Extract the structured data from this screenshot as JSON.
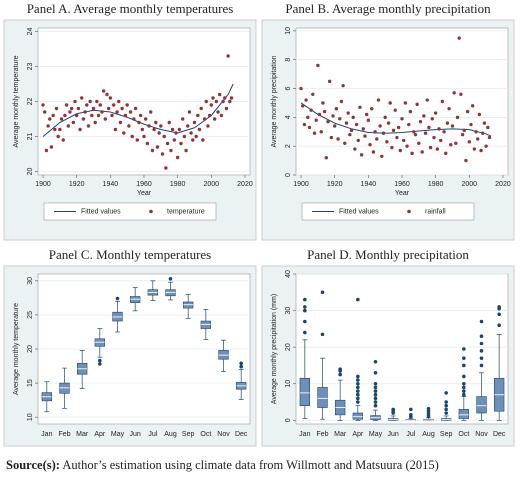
{
  "chart_data": [
    {
      "type": "scatter",
      "title": "Panel A. Average monthly temperatures",
      "xlabel": "Year",
      "ylabel": "Average monthly temperature",
      "xlim": [
        1897,
        2023
      ],
      "xticks": [
        1900,
        1920,
        1940,
        1960,
        1980,
        2000,
        2020
      ],
      "ylim": [
        19.9,
        24.1
      ],
      "yticks": [
        20,
        21,
        22,
        23,
        24
      ],
      "series": [
        {
          "name": "Fitted values",
          "kind": "line",
          "color": "#1a476f",
          "x": [
            1900,
            1910,
            1920,
            1930,
            1940,
            1950,
            1960,
            1970,
            1980,
            1990,
            2000,
            2010,
            2013
          ],
          "values": [
            21.0,
            21.4,
            21.65,
            21.75,
            21.7,
            21.55,
            21.35,
            21.2,
            21.1,
            21.25,
            21.6,
            22.2,
            22.5
          ]
        },
        {
          "name": "temperature",
          "kind": "point",
          "color": "#90353b",
          "x": [
            1900,
            1901,
            1902,
            1903,
            1904,
            1905,
            1906,
            1907,
            1908,
            1909,
            1910,
            1911,
            1912,
            1913,
            1914,
            1915,
            1916,
            1917,
            1918,
            1919,
            1920,
            1921,
            1922,
            1923,
            1924,
            1925,
            1926,
            1927,
            1928,
            1929,
            1930,
            1931,
            1932,
            1933,
            1934,
            1935,
            1936,
            1937,
            1938,
            1939,
            1940,
            1941,
            1942,
            1943,
            1944,
            1945,
            1946,
            1947,
            1948,
            1949,
            1950,
            1951,
            1952,
            1953,
            1954,
            1955,
            1956,
            1957,
            1958,
            1959,
            1960,
            1961,
            1962,
            1963,
            1964,
            1965,
            1966,
            1967,
            1968,
            1969,
            1970,
            1971,
            1972,
            1973,
            1974,
            1975,
            1976,
            1977,
            1978,
            1979,
            1980,
            1981,
            1982,
            1983,
            1984,
            1985,
            1986,
            1987,
            1988,
            1989,
            1990,
            1991,
            1992,
            1993,
            1994,
            1995,
            1996,
            1997,
            1998,
            1999,
            2000,
            2001,
            2002,
            2003,
            2004,
            2005,
            2006,
            2007,
            2008,
            2009,
            2010,
            2011,
            2012
          ],
          "values": [
            21.9,
            21.7,
            20.6,
            21.3,
            21.5,
            20.7,
            21.6,
            21.2,
            21.8,
            21.0,
            21.2,
            21.5,
            20.9,
            21.6,
            21.9,
            21.3,
            21.7,
            21.8,
            21.4,
            22.0,
            21.6,
            21.8,
            21.2,
            22.1,
            21.5,
            21.7,
            21.9,
            21.3,
            22.0,
            21.6,
            21.8,
            21.4,
            22.0,
            21.6,
            21.9,
            21.7,
            22.3,
            21.5,
            22.2,
            21.8,
            22.1,
            21.6,
            21.9,
            21.2,
            21.7,
            22.0,
            21.4,
            21.8,
            21.1,
            21.6,
            21.9,
            21.3,
            21.7,
            21.0,
            21.5,
            21.8,
            20.9,
            21.4,
            21.6,
            21.2,
            21.0,
            21.5,
            20.8,
            21.3,
            21.7,
            20.6,
            21.2,
            21.4,
            20.7,
            21.1,
            21.3,
            20.5,
            21.0,
            20.1,
            20.8,
            21.4,
            20.6,
            21.2,
            20.9,
            21.1,
            20.4,
            21.2,
            20.8,
            21.5,
            21.0,
            20.6,
            21.3,
            21.7,
            21.1,
            20.9,
            21.4,
            21.0,
            21.6,
            21.2,
            21.8,
            20.9,
            21.5,
            22.0,
            21.3,
            21.6,
            21.9,
            22.1,
            21.5,
            22.0,
            21.7,
            22.2,
            21.6,
            22.0,
            22.1,
            21.8,
            23.3,
            22.0,
            22.1
          ]
        }
      ]
    },
    {
      "type": "scatter",
      "title": "Panel B. Average monthly precipitation",
      "xlabel": "Year",
      "ylabel": "Average monthly precipitation",
      "xlim": [
        1897,
        2023
      ],
      "xticks": [
        1900,
        1920,
        1940,
        1960,
        1980,
        2000,
        2020
      ],
      "ylim": [
        0,
        10.2
      ],
      "yticks": [
        0,
        2,
        4,
        6,
        8,
        10
      ],
      "series": [
        {
          "name": "Fitted values",
          "kind": "line",
          "color": "#1a476f",
          "x": [
            1900,
            1910,
            1920,
            1930,
            1940,
            1950,
            1960,
            1970,
            1980,
            1990,
            2000,
            2010,
            2013
          ],
          "values": [
            5.0,
            4.2,
            3.6,
            3.2,
            2.95,
            2.9,
            2.95,
            3.05,
            3.15,
            3.2,
            3.15,
            2.85,
            2.7
          ]
        },
        {
          "name": "rainfall",
          "kind": "point",
          "color": "#90353b",
          "x": [
            1900,
            1901,
            1902,
            1903,
            1904,
            1905,
            1906,
            1907,
            1908,
            1909,
            1910,
            1911,
            1912,
            1913,
            1914,
            1915,
            1916,
            1917,
            1918,
            1919,
            1920,
            1921,
            1922,
            1923,
            1924,
            1925,
            1926,
            1927,
            1928,
            1929,
            1930,
            1931,
            1932,
            1933,
            1934,
            1935,
            1936,
            1937,
            1938,
            1939,
            1940,
            1941,
            1942,
            1943,
            1944,
            1945,
            1946,
            1947,
            1948,
            1949,
            1950,
            1951,
            1952,
            1953,
            1954,
            1955,
            1956,
            1957,
            1958,
            1959,
            1960,
            1961,
            1962,
            1963,
            1964,
            1965,
            1966,
            1967,
            1968,
            1969,
            1970,
            1971,
            1972,
            1973,
            1974,
            1975,
            1976,
            1977,
            1978,
            1979,
            1980,
            1981,
            1982,
            1983,
            1984,
            1985,
            1986,
            1987,
            1988,
            1989,
            1990,
            1991,
            1992,
            1993,
            1994,
            1995,
            1996,
            1997,
            1998,
            1999,
            2000,
            2001,
            2002,
            2003,
            2004,
            2005,
            2006,
            2007,
            2008,
            2009,
            2010,
            2011,
            2012
          ],
          "values": [
            6.0,
            4.8,
            3.5,
            5.2,
            4.0,
            3.3,
            4.5,
            5.6,
            2.9,
            3.8,
            7.6,
            4.2,
            3.0,
            5.0,
            4.4,
            1.2,
            3.7,
            6.5,
            2.6,
            4.1,
            3.4,
            4.6,
            2.5,
            3.9,
            5.1,
            6.2,
            2.2,
            3.6,
            4.3,
            2.8,
            3.1,
            4.0,
            1.8,
            3.5,
            2.4,
            4.7,
            1.4,
            3.2,
            2.7,
            4.2,
            3.8,
            2.1,
            4.6,
            1.6,
            3.0,
            2.5,
            5.2,
            3.4,
            1.3,
            2.9,
            4.0,
            2.3,
            3.6,
            5.0,
            1.9,
            3.1,
            4.5,
            2.6,
            3.3,
            1.7,
            3.9,
            2.4,
            5.0,
            2.0,
            3.5,
            4.4,
            1.5,
            3.0,
            2.8,
            4.9,
            2.2,
            3.7,
            1.6,
            4.1,
            2.9,
            5.2,
            3.3,
            1.9,
            3.9,
            2.6,
            4.3,
            1.8,
            3.2,
            2.4,
            5.1,
            3.0,
            1.5,
            3.6,
            4.6,
            2.1,
            3.4,
            5.7,
            2.2,
            4.0,
            9.5,
            5.6,
            2.8,
            3.1,
            1.0,
            4.4,
            2.3,
            3.5,
            4.8,
            1.8,
            3.0,
            2.5,
            4.2,
            1.7,
            2.9,
            3.6,
            2.0,
            3.3,
            2.6
          ]
        }
      ]
    },
    {
      "type": "box",
      "title": "Panel C. Monthly temperatures",
      "ylabel": "Average monthly temperature",
      "color": "#6e8fb8",
      "outlier_color": "#1a476f",
      "ylim": [
        9,
        31
      ],
      "yticks": [
        10,
        15,
        20,
        25,
        30
      ],
      "categories": [
        "Jan",
        "Feb",
        "Mar",
        "Apr",
        "May",
        "Jun",
        "Jul",
        "Aug",
        "Sep",
        "Oct",
        "Nov",
        "Dec"
      ],
      "boxes": [
        {
          "low": 10.8,
          "q1": 12.4,
          "median": 13.0,
          "q3": 13.6,
          "high": 15.2,
          "outliers": []
        },
        {
          "low": 11.3,
          "q1": 13.5,
          "median": 14.3,
          "q3": 15.0,
          "high": 17.2,
          "outliers": []
        },
        {
          "low": 14.2,
          "q1": 16.3,
          "median": 17.1,
          "q3": 17.9,
          "high": 19.8,
          "outliers": []
        },
        {
          "low": 18.8,
          "q1": 20.4,
          "median": 21.0,
          "q3": 21.5,
          "high": 23.0,
          "outliers": [
            18.3,
            17.8
          ]
        },
        {
          "low": 22.5,
          "q1": 24.1,
          "median": 24.7,
          "q3": 25.4,
          "high": 27.0,
          "outliers": [
            27.4
          ]
        },
        {
          "low": 25.6,
          "q1": 26.8,
          "median": 27.3,
          "q3": 27.7,
          "high": 29.0,
          "outliers": []
        },
        {
          "low": 27.1,
          "q1": 27.9,
          "median": 28.3,
          "q3": 28.7,
          "high": 30.0,
          "outliers": []
        },
        {
          "low": 27.2,
          "q1": 27.8,
          "median": 28.3,
          "q3": 28.7,
          "high": 29.8,
          "outliers": [
            30.3
          ]
        },
        {
          "low": 24.5,
          "q1": 26.0,
          "median": 26.5,
          "q3": 26.9,
          "high": 28.0,
          "outliers": []
        },
        {
          "low": 21.4,
          "q1": 23.0,
          "median": 23.6,
          "q3": 24.1,
          "high": 25.8,
          "outliers": []
        },
        {
          "low": 16.7,
          "q1": 18.5,
          "median": 19.1,
          "q3": 19.8,
          "high": 21.3,
          "outliers": []
        },
        {
          "low": 12.6,
          "q1": 14.1,
          "median": 14.6,
          "q3": 15.1,
          "high": 17.0,
          "outliers": [
            17.4,
            17.9
          ]
        }
      ]
    },
    {
      "type": "box",
      "title": "Panel D. Monthly precipitation",
      "ylabel": "Average monthly precipitation (mm)",
      "color": "#6e8fb8",
      "outlier_color": "#1a476f",
      "ylim": [
        -1,
        40
      ],
      "yticks": [
        0,
        10,
        20,
        30,
        40
      ],
      "categories": [
        "Jan",
        "Feb",
        "Mar",
        "Apr",
        "May",
        "Jun",
        "Jul",
        "Aug",
        "Sep",
        "Oct",
        "Nov",
        "Dec"
      ],
      "boxes": [
        {
          "low": 0.5,
          "q1": 4,
          "median": 7.5,
          "q3": 11.5,
          "high": 22,
          "outliers": [
            24,
            27,
            30,
            31,
            33
          ]
        },
        {
          "low": 0.3,
          "q1": 3.5,
          "median": 6,
          "q3": 9,
          "high": 17,
          "outliers": [
            23.5,
            35
          ]
        },
        {
          "low": 0,
          "q1": 1.5,
          "median": 3.5,
          "q3": 5.5,
          "high": 11,
          "outliers": [
            12.5,
            13.5,
            14
          ]
        },
        {
          "low": 0,
          "q1": 0.3,
          "median": 1,
          "q3": 2,
          "high": 4,
          "outliers": [
            5,
            6,
            7,
            8,
            9,
            10,
            11,
            12,
            33
          ]
        },
        {
          "low": 0,
          "q1": 0.2,
          "median": 0.7,
          "q3": 1.3,
          "high": 2.8,
          "outliers": [
            4,
            5,
            6,
            7,
            8,
            9,
            10,
            13,
            16
          ]
        },
        {
          "low": 0,
          "q1": 0,
          "median": 0.2,
          "q3": 0.5,
          "high": 1.2,
          "outliers": [
            2,
            2.5,
            3
          ]
        },
        {
          "low": 0,
          "q1": 0,
          "median": 0,
          "q3": 0.2,
          "high": 0.5,
          "outliers": [
            1,
            1.5,
            3
          ]
        },
        {
          "low": 0,
          "q1": 0,
          "median": 0.1,
          "q3": 0.3,
          "high": 0.7,
          "outliers": [
            1.2,
            1.8,
            2.5,
            3.2
          ]
        },
        {
          "low": 0,
          "q1": 0,
          "median": 0.2,
          "q3": 0.5,
          "high": 1.2,
          "outliers": [
            2,
            3,
            4,
            5,
            7.5
          ]
        },
        {
          "low": 0,
          "q1": 0.5,
          "median": 1.5,
          "q3": 3,
          "high": 6.5,
          "outliers": [
            7,
            8,
            9,
            10,
            12,
            15,
            17,
            19.5
          ]
        },
        {
          "low": 0,
          "q1": 2,
          "median": 4,
          "q3": 6.5,
          "high": 13,
          "outliers": [
            15,
            17,
            19,
            21,
            23,
            27
          ]
        },
        {
          "low": 0,
          "q1": 2.5,
          "median": 7,
          "q3": 11.5,
          "high": 23.5,
          "outliers": [
            26,
            29,
            30.5,
            31
          ]
        }
      ]
    }
  ],
  "source": {
    "label": "Source(s):",
    "text": "Author’s estimation using climate data from Willmott and Matsuura (2015)"
  }
}
